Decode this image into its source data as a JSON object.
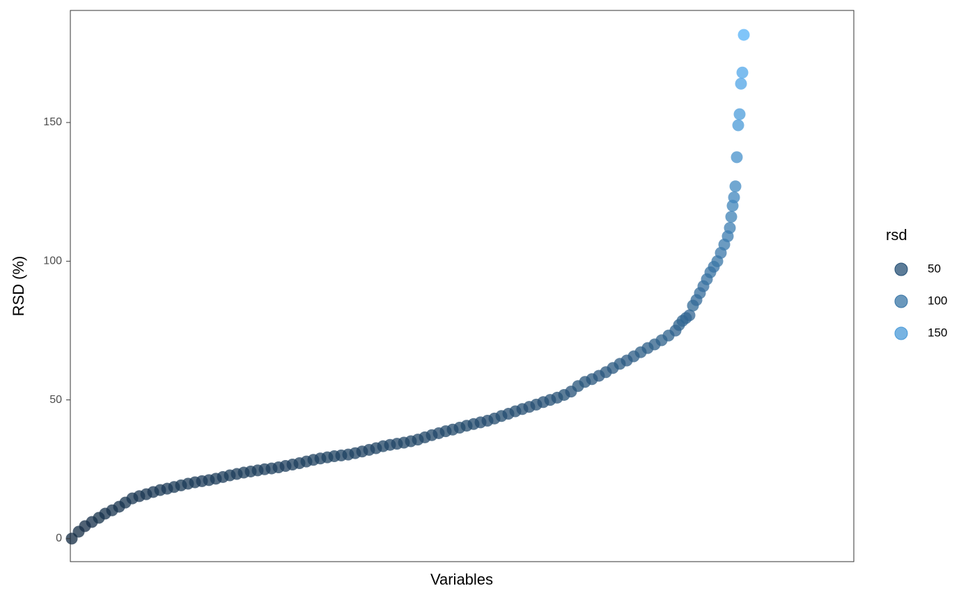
{
  "chart_data": {
    "type": "scatter",
    "x_label": "Variables",
    "y_label": "RSD (%)",
    "x": [
      1,
      11,
      20,
      30,
      40,
      49,
      59,
      69,
      78,
      88,
      98,
      108,
      118,
      128,
      138,
      148,
      158,
      168,
      178,
      188,
      198,
      208,
      218,
      228,
      238,
      248,
      258,
      268,
      278,
      288,
      298,
      308,
      318,
      328,
      338,
      348,
      358,
      368,
      378,
      388,
      398,
      408,
      418,
      428,
      438,
      448,
      458,
      468,
      478,
      488,
      498,
      508,
      518,
      528,
      538,
      548,
      558,
      568,
      578,
      588,
      598,
      608,
      618,
      628,
      638,
      648,
      658,
      668,
      678,
      688,
      698,
      708,
      718,
      728,
      738,
      748,
      758,
      768,
      778,
      788,
      798,
      808,
      818,
      828,
      838,
      848,
      858,
      868,
      873,
      878,
      883,
      888,
      893,
      898,
      903,
      908,
      913,
      918,
      923,
      928,
      933,
      938,
      943,
      946,
      948,
      950,
      952,
      954,
      956,
      958,
      960,
      962,
      964,
      966
    ],
    "values": [
      0,
      2.5,
      4.5,
      6,
      7.5,
      9,
      10.2,
      11.5,
      13,
      14.5,
      15.3,
      16,
      16.8,
      17.5,
      18,
      18.6,
      19.2,
      19.8,
      20.3,
      20.7,
      21.1,
      21.6,
      22.2,
      22.8,
      23.3,
      23.8,
      24.2,
      24.6,
      25,
      25.3,
      25.7,
      26.2,
      26.7,
      27.2,
      27.8,
      28.4,
      28.9,
      29.3,
      29.7,
      30,
      30.3,
      30.8,
      31.4,
      32,
      32.6,
      33.3,
      33.8,
      34.2,
      34.6,
      35.1,
      35.7,
      36.5,
      37.3,
      38,
      38.7,
      39.3,
      40,
      40.7,
      41.3,
      41.9,
      42.5,
      43.3,
      44.2,
      45,
      45.9,
      46.7,
      47.5,
      48.3,
      49.2,
      50,
      50.8,
      51.8,
      53,
      55,
      56.5,
      57.5,
      58.7,
      60,
      61.5,
      63,
      64.2,
      65.7,
      67.2,
      68.7,
      70,
      71.5,
      73.2,
      75,
      77,
      78.5,
      79.5,
      80.5,
      84,
      86,
      88.5,
      91,
      93.5,
      96,
      98,
      100,
      103,
      106,
      109,
      112,
      116,
      120,
      123,
      127,
      137.5,
      149,
      153,
      164,
      168,
      181.6
    ],
    "xlim": [
      -1,
      1124
    ],
    "ylim": [
      -8.3,
      190.4
    ],
    "yticks": [
      0,
      50,
      100,
      150
    ],
    "alpha": 0.75,
    "color_scale": {
      "title": "rsd",
      "low": "#132B43",
      "high": "#56B1F7",
      "breaks": [
        50,
        100,
        150
      ]
    }
  }
}
